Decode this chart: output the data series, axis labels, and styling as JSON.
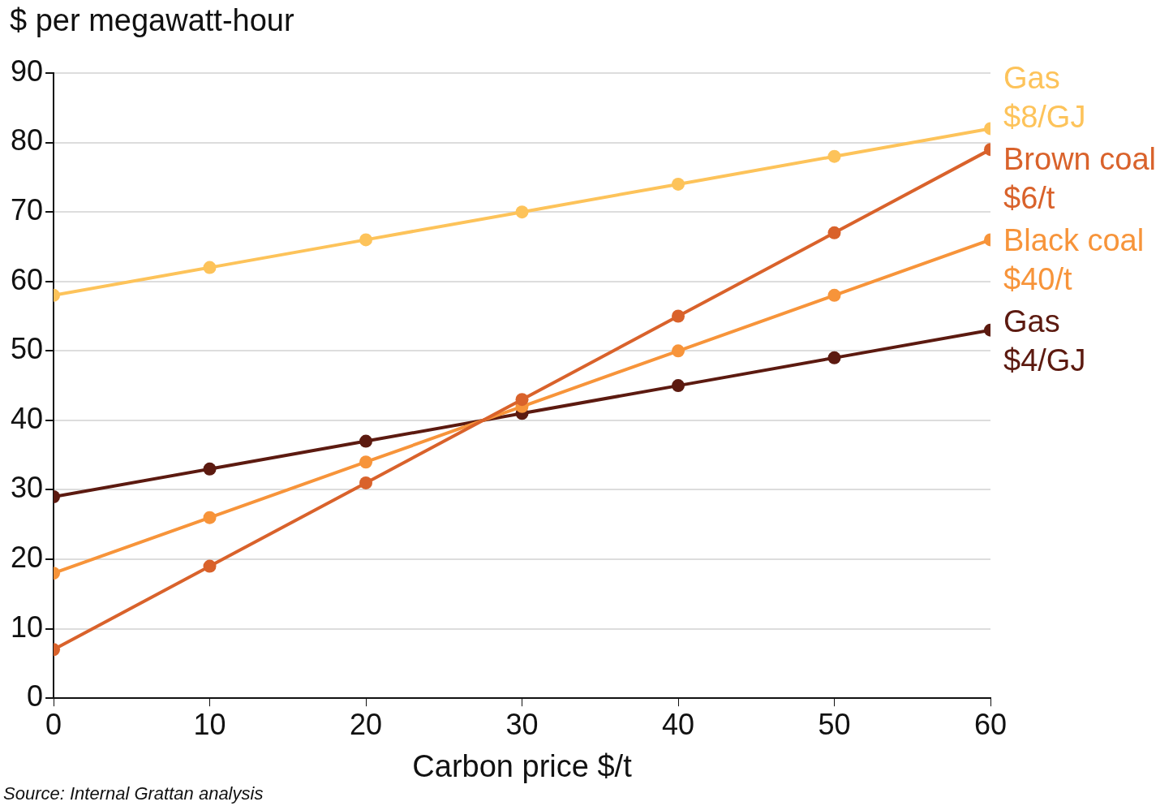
{
  "chart_data": {
    "type": "line",
    "ylabel": "$ per megawatt-hour",
    "xlabel": "Carbon price $/t",
    "x": [
      0,
      10,
      20,
      30,
      40,
      50,
      60
    ],
    "xlim": [
      0,
      60
    ],
    "xticks": [
      0,
      10,
      20,
      30,
      40,
      50,
      60
    ],
    "ylim": [
      0,
      90
    ],
    "yticks": [
      0,
      10,
      20,
      30,
      40,
      50,
      60,
      70,
      80,
      90
    ],
    "grid": "y",
    "legend": false,
    "marker": "circle",
    "line_style": "solid",
    "series": [
      {
        "name": "Gas $8/GJ",
        "color": "#fdc35a",
        "values": [
          58,
          62,
          66,
          70,
          74,
          78,
          82
        ]
      },
      {
        "name": "Brown coal $6/t",
        "color": "#d9622b",
        "values": [
          7,
          19,
          31,
          43,
          55,
          67,
          79
        ]
      },
      {
        "name": "Black coal $40/t",
        "color": "#f7943a",
        "values": [
          18,
          26,
          34,
          42,
          50,
          58,
          66
        ]
      },
      {
        "name": "Gas $4/GJ",
        "color": "#5c1a10",
        "values": [
          29,
          33,
          37,
          41,
          45,
          49,
          53
        ]
      }
    ],
    "annotations": [
      "Source: Internal Grattan analysis"
    ]
  }
}
